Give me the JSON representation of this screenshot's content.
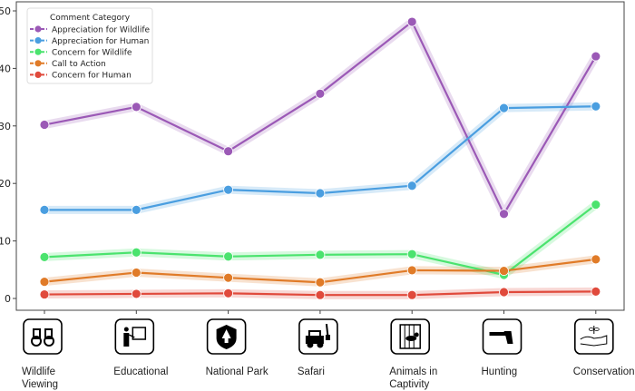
{
  "chart_data": {
    "type": "line",
    "title": "",
    "xlabel": "",
    "ylabel": "",
    "categories": [
      [
        "Wildlife",
        "Viewing"
      ],
      [
        "Educational"
      ],
      [
        "National Park"
      ],
      [
        "Safari"
      ],
      [
        "Animals in",
        "Captivity"
      ],
      [
        "Hunting"
      ],
      [
        "Conservation"
      ]
    ],
    "category_icons": [
      "binoculars-icon",
      "teacher-board-icon",
      "park-shield-tree-icon",
      "safari-jeep-giraffe-icon",
      "caged-monkey-icon",
      "gun-icon",
      "hand-plant-icon"
    ],
    "ylim": [
      -2,
      52
    ],
    "yticks": [
      0,
      10,
      20,
      30,
      40,
      50
    ],
    "grid": false,
    "legend": {
      "title": "Comment Category",
      "placement": "top-left"
    },
    "series": [
      {
        "name": "Appreciation for Wildlife",
        "color": "#9b59b6",
        "values": [
          30.2,
          33.3,
          25.6,
          35.6,
          48.1,
          14.7,
          42.1
        ]
      },
      {
        "name": "Appreciation for Human",
        "color": "#4a9ee0",
        "values": [
          15.4,
          15.4,
          18.9,
          18.3,
          19.6,
          33.1,
          33.4
        ]
      },
      {
        "name": "Concern for Wildlife",
        "color": "#4be36e",
        "values": [
          7.2,
          8.0,
          7.3,
          7.6,
          7.7,
          4.1,
          16.3
        ]
      },
      {
        "name": "Call to Action",
        "color": "#e07b28",
        "values": [
          2.9,
          4.5,
          3.6,
          2.8,
          4.9,
          4.8,
          6.8
        ]
      },
      {
        "name": "Concern for Human",
        "color": "#e04a3c",
        "values": [
          0.7,
          0.8,
          0.9,
          0.6,
          0.6,
          1.1,
          1.2
        ]
      }
    ]
  }
}
